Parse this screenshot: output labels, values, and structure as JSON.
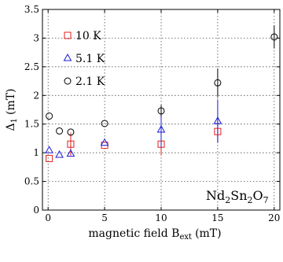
{
  "chart_data": {
    "type": "scatter",
    "xlabel": "magnetic field B",
    "xlabel_sub": "ext",
    "xlabel_unit": "(mT)",
    "ylabel": "Δ",
    "ylabel_sub": "1",
    "ylabel_unit": "(mT)",
    "xlim": [
      -0.5,
      20.5
    ],
    "ylim": [
      0,
      3.5
    ],
    "x_ticks": [
      0,
      5,
      10,
      15,
      20
    ],
    "y_ticks": [
      0,
      0.5,
      1,
      1.5,
      2,
      2.5,
      3,
      3.5
    ],
    "x_tick_labels": [
      "0",
      "5",
      "10",
      "15",
      "20"
    ],
    "y_tick_labels": [
      "0",
      "0.5",
      "1",
      "1.5",
      "2",
      "2.5",
      "3",
      "3.5"
    ],
    "grid": true,
    "legend_position": "top-left",
    "annotation": {
      "parts": [
        {
          "text": "Nd",
          "sub": false
        },
        {
          "text": "2",
          "sub": true
        },
        {
          "text": "Sn",
          "sub": false
        },
        {
          "text": "2",
          "sub": true
        },
        {
          "text": "O",
          "sub": false
        },
        {
          "text": "7",
          "sub": true
        }
      ]
    },
    "series": [
      {
        "name": "10 K",
        "marker": "square",
        "color": "#e0201f",
        "points": [
          {
            "x": 0.1,
            "y": 0.9,
            "err": 0
          },
          {
            "x": 2.0,
            "y": 1.15,
            "err": 0.2
          },
          {
            "x": 5.0,
            "y": 1.13,
            "err": 0
          },
          {
            "x": 10.0,
            "y": 1.15,
            "err": 0.2
          },
          {
            "x": 15.0,
            "y": 1.37,
            "err": 0.18
          }
        ]
      },
      {
        "name": "5.1 K",
        "marker": "triangle",
        "color": "#1a1ad6",
        "points": [
          {
            "x": 0.1,
            "y": 1.04,
            "err": 0
          },
          {
            "x": 1.0,
            "y": 0.96,
            "err": 0
          },
          {
            "x": 2.0,
            "y": 0.98,
            "err": 0
          },
          {
            "x": 5.0,
            "y": 1.17,
            "err": 0
          },
          {
            "x": 10.0,
            "y": 1.4,
            "err": 0.32
          },
          {
            "x": 15.0,
            "y": 1.55,
            "err": 0.38
          }
        ]
      },
      {
        "name": "2.1 K",
        "marker": "circle",
        "color": "#000000",
        "points": [
          {
            "x": 0.1,
            "y": 1.64,
            "err": 0
          },
          {
            "x": 1.0,
            "y": 1.38,
            "err": 0
          },
          {
            "x": 2.0,
            "y": 1.36,
            "err": 0
          },
          {
            "x": 5.0,
            "y": 1.51,
            "err": 0
          },
          {
            "x": 10.0,
            "y": 1.73,
            "err": 0.1
          },
          {
            "x": 15.0,
            "y": 2.22,
            "err": 0.25
          },
          {
            "x": 20.0,
            "y": 3.02,
            "err": 0.2
          }
        ]
      }
    ]
  }
}
